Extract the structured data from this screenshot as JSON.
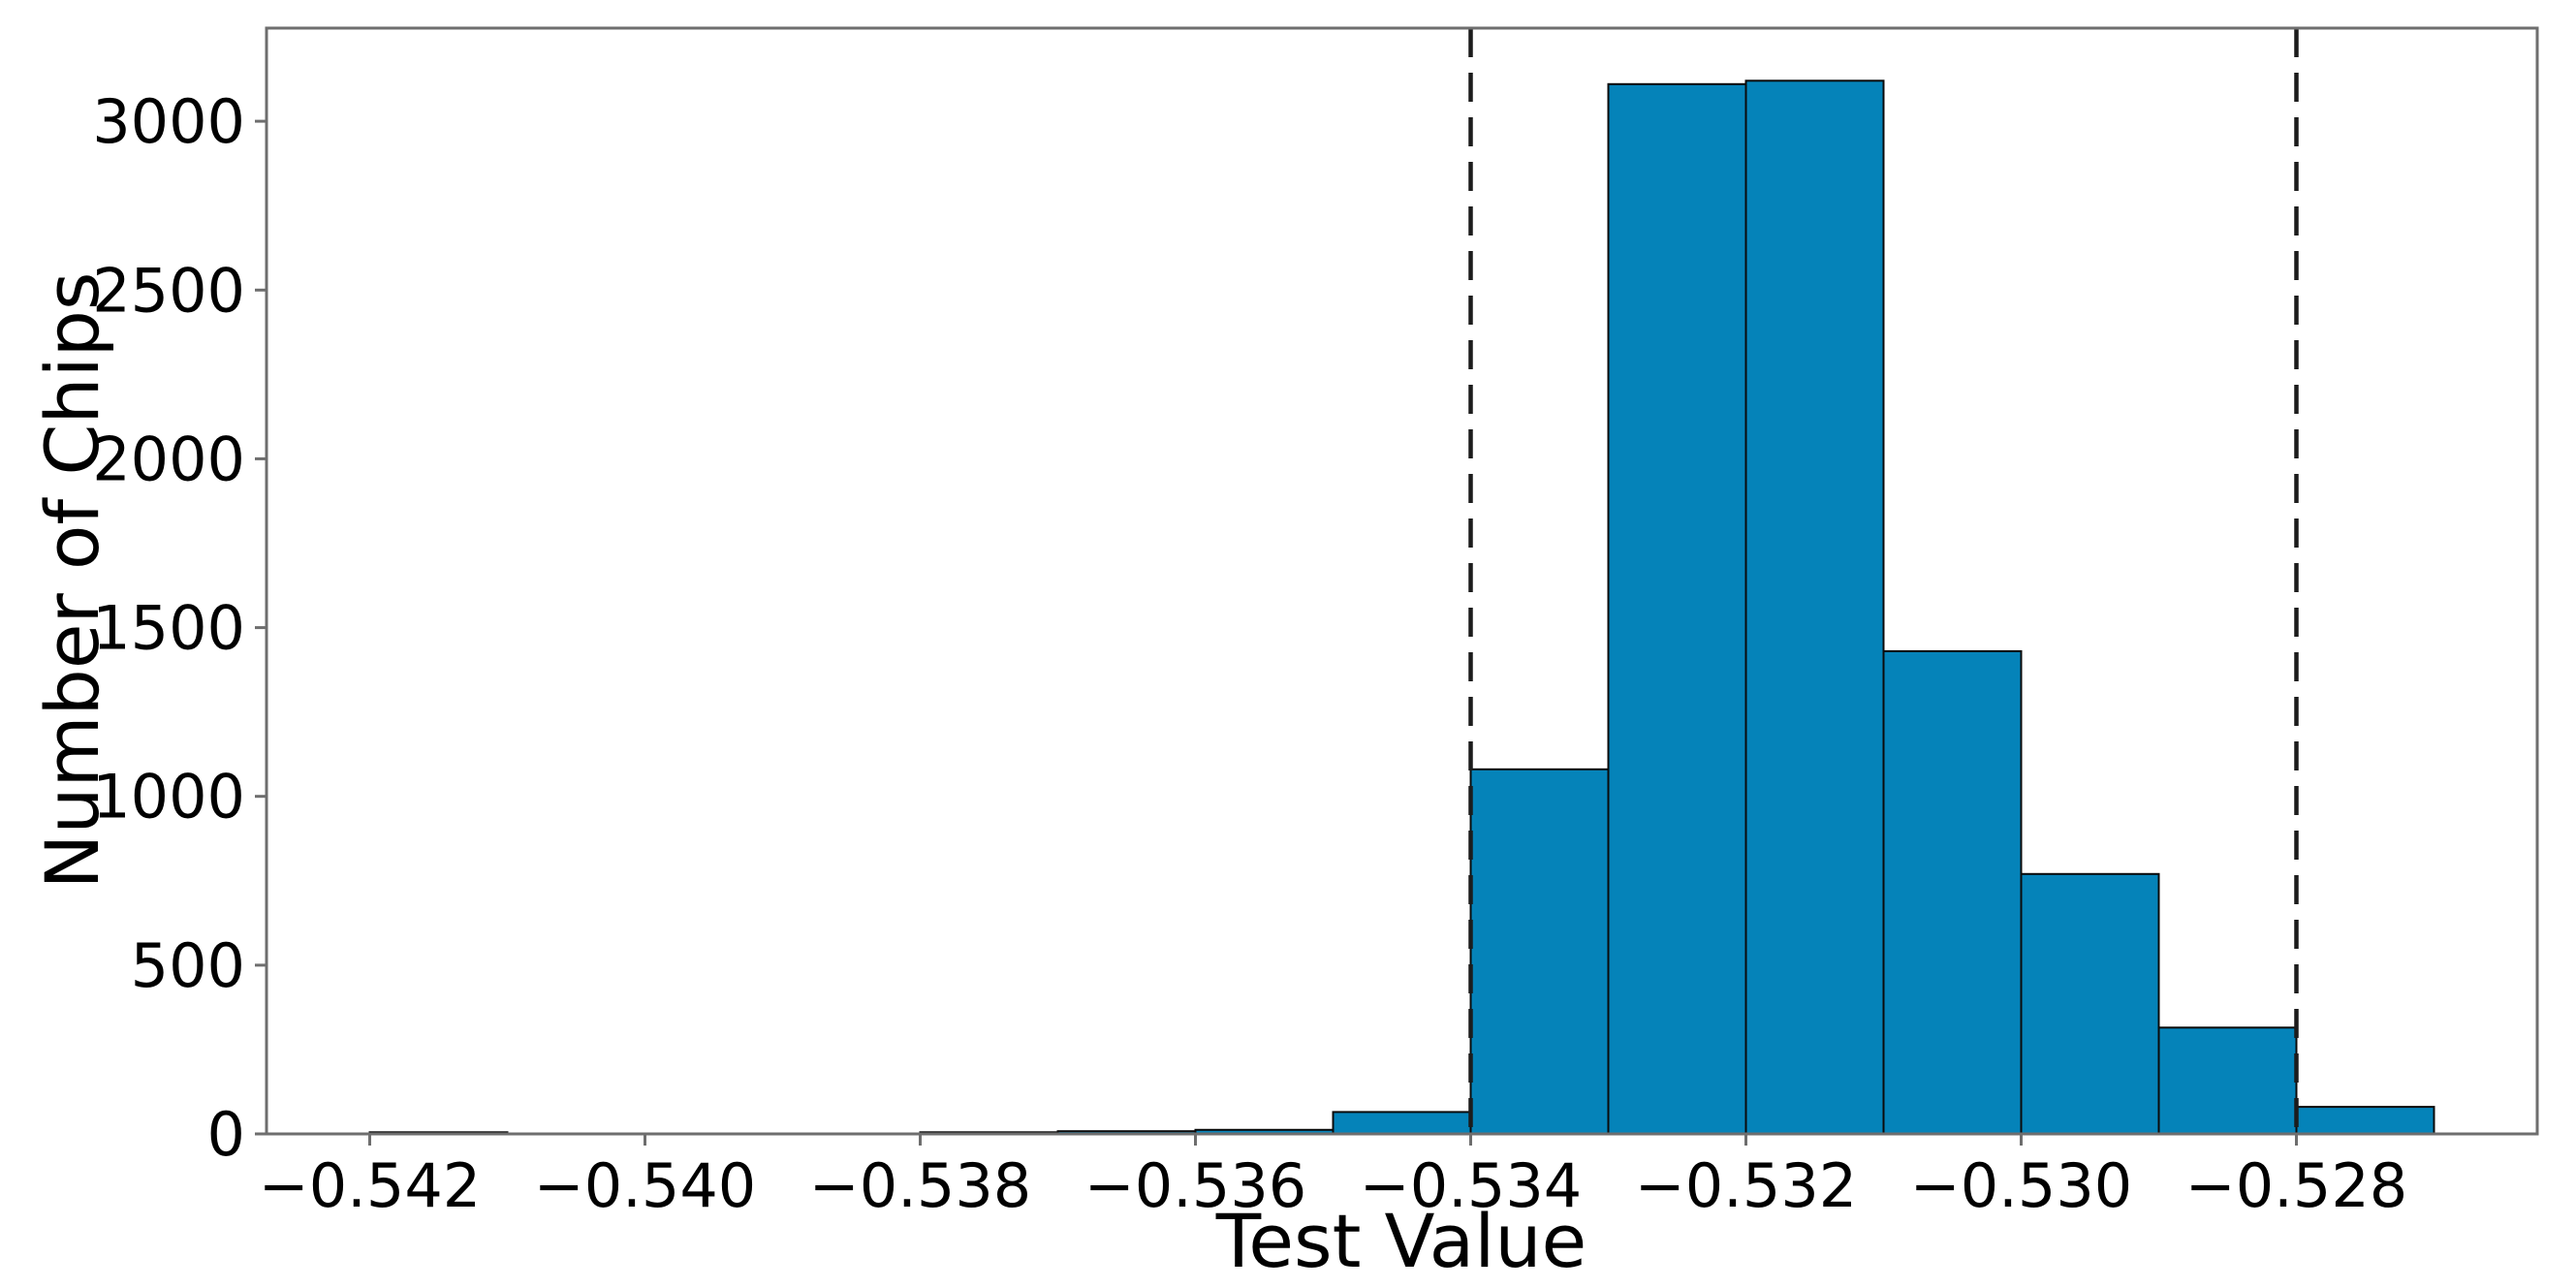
{
  "figure": {
    "background_color": "#ffffff"
  },
  "chart_data": {
    "type": "bar",
    "subtype": "histogram",
    "title": "",
    "xlabel": "Test Value",
    "ylabel": "Number of Chips",
    "bin_edges": [
      -0.542,
      -0.541,
      -0.54,
      -0.539,
      -0.538,
      -0.537,
      -0.536,
      -0.535,
      -0.534,
      -0.533,
      -0.532,
      -0.531,
      -0.53,
      -0.529,
      -0.528,
      -0.527
    ],
    "values": [
      5,
      0,
      0,
      0,
      5,
      8,
      12,
      65,
      1080,
      3110,
      3120,
      1430,
      770,
      315,
      80
    ],
    "x_ticks": [
      -0.542,
      -0.54,
      -0.538,
      -0.536,
      -0.534,
      -0.532,
      -0.53,
      -0.528
    ],
    "x_tick_labels": [
      "−0.542",
      "−0.540",
      "−0.538",
      "−0.536",
      "−0.534",
      "−0.532",
      "−0.530",
      "−0.528"
    ],
    "y_ticks": [
      0,
      500,
      1000,
      1500,
      2000,
      2500,
      3000
    ],
    "y_tick_labels": [
      "0",
      "500",
      "1000",
      "1500",
      "2000",
      "2500",
      "3000"
    ],
    "xlim": [
      -0.54275,
      -0.52625
    ],
    "ylim": [
      0,
      3276
    ],
    "grid": false,
    "legend": null,
    "vlines": [
      {
        "x": -0.534,
        "style": "dashed"
      },
      {
        "x": -0.528,
        "style": "dashed"
      }
    ],
    "colors": {
      "bar_fill": "#0583b9",
      "bar_edge": "#0b0b0b",
      "spine": "#6e6e6e",
      "vline": "#1c1c1c",
      "text": "#000000"
    }
  }
}
